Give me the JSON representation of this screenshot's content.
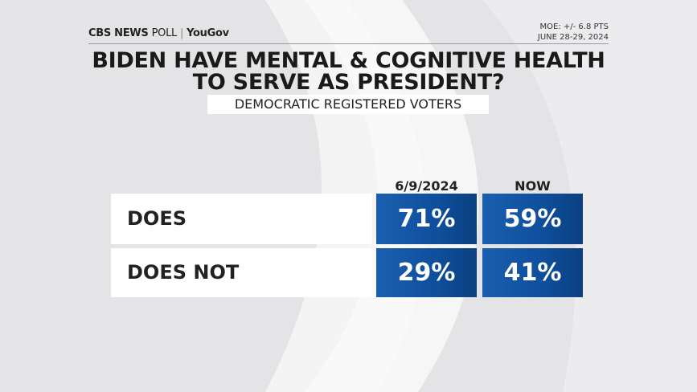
{
  "header": {
    "brand": "CBS NEWS",
    "brand_suffix": "POLL",
    "partner": "YouGov",
    "moe": "MOE: +/- 6.8 PTS",
    "dates": "JUNE 28-29, 2024"
  },
  "title": [
    "BIDEN HAVE MENTAL & COGNITIVE HEALTH",
    "TO SERVE AS PRESIDENT?"
  ],
  "subtitle": "DEMOCRATIC REGISTERED VOTERS",
  "table": {
    "columns": [
      "6/9/2024",
      "NOW"
    ],
    "rows": [
      {
        "label": "DOES",
        "cells": [
          "71%",
          "59%"
        ]
      },
      {
        "label": "DOES NOT",
        "cells": [
          "29%",
          "41%"
        ]
      }
    ]
  }
}
